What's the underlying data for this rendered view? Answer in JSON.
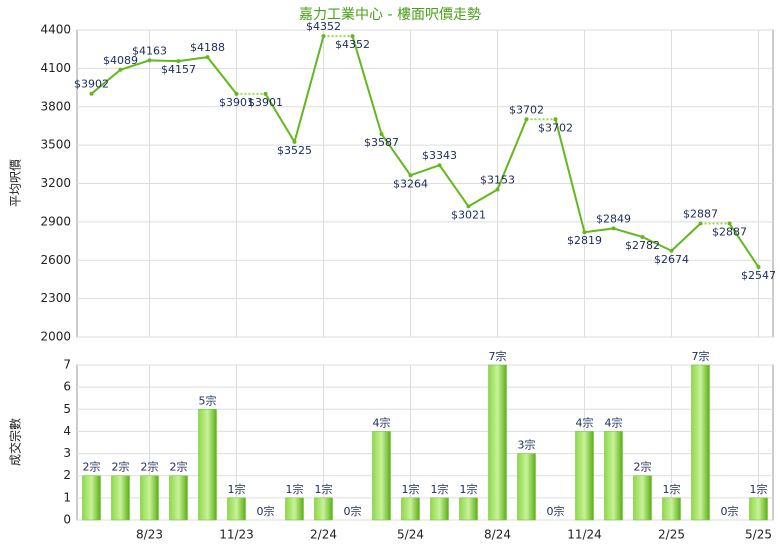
{
  "chart_data": [
    {
      "type": "line",
      "title": "嘉力工業中心 - 樓面呎價走勢",
      "y_label": "平均呎價",
      "color": "#62b81c",
      "values": [
        3902,
        4089,
        4163,
        4157,
        4188,
        3901,
        3901,
        3525,
        4352,
        4352,
        3587,
        3264,
        3343,
        3021,
        3153,
        3702,
        3702,
        2819,
        2849,
        2782,
        2674,
        2887,
        2887,
        2547
      ],
      "value_labels": [
        "$3902",
        "$4089",
        "$4163",
        "$4157",
        "$4188",
        "$3901",
        "$3901",
        "$3525",
        "$4352",
        "$4352",
        "$3587",
        "$3264",
        "$3343",
        "$3021",
        "$3153",
        "$3702",
        "$3702",
        "$2819",
        "$2849",
        "$2782",
        "$2674",
        "$2887",
        "$2887",
        "$2547"
      ],
      "ylim": [
        2000,
        4400
      ],
      "yticks": [
        2000,
        2300,
        2600,
        2900,
        3200,
        3500,
        3800,
        4100,
        4400
      ],
      "grid": true
    },
    {
      "type": "bar",
      "y_label": "成交宗數",
      "color": "#6cc424",
      "categories": [
        null,
        null,
        "8/23",
        null,
        null,
        "11/23",
        null,
        null,
        "2/24",
        null,
        null,
        "5/24",
        null,
        null,
        "8/24",
        null,
        null,
        "11/24",
        null,
        null,
        "2/25",
        null,
        null,
        "5/25"
      ],
      "values": [
        2,
        2,
        2,
        2,
        5,
        1,
        0,
        1,
        1,
        0,
        4,
        1,
        1,
        1,
        7,
        3,
        0,
        4,
        4,
        2,
        1,
        7,
        0,
        1
      ],
      "value_labels": [
        "2宗",
        "2宗",
        "2宗",
        "2宗",
        "5宗",
        "1宗",
        "0宗",
        "1宗",
        "1宗",
        "0宗",
        "4宗",
        "1宗",
        "1宗",
        "1宗",
        "7宗",
        "3宗",
        "0宗",
        "4宗",
        "4宗",
        "2宗",
        "1宗",
        "7宗",
        "0宗",
        "1宗"
      ],
      "ylim": [
        0,
        7
      ],
      "yticks": [
        0,
        1,
        2,
        3,
        4,
        5,
        6,
        7
      ],
      "grid": true
    }
  ]
}
